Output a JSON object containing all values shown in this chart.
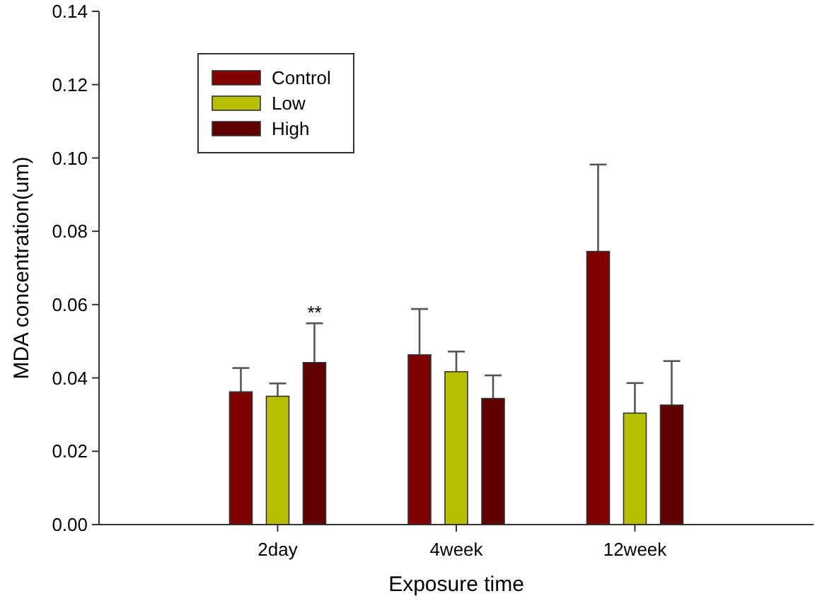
{
  "chart_data": {
    "type": "bar",
    "xlabel": "Exposure time",
    "ylabel": "MDA concentration(um)",
    "categories": [
      "2day",
      "4week",
      "12week"
    ],
    "series": [
      {
        "name": "Control",
        "color": "#800000",
        "values": [
          0.0362,
          0.0463,
          0.0745
        ],
        "errors": [
          0.0065,
          0.0125,
          0.0237
        ]
      },
      {
        "name": "Low",
        "color": "#b8bf00",
        "values": [
          0.035,
          0.0417,
          0.0304
        ],
        "errors": [
          0.0035,
          0.0055,
          0.0082
        ]
      },
      {
        "name": "High",
        "color": "#600000",
        "values": [
          0.0442,
          0.0344,
          0.0326
        ],
        "errors": [
          0.0107,
          0.0063,
          0.012
        ]
      }
    ],
    "ylim": [
      0,
      0.14
    ],
    "yticks": [
      {
        "value": 0,
        "label": "0.00"
      },
      {
        "value": 0.02,
        "label": "0.02"
      },
      {
        "value": 0.04,
        "label": "0.04"
      },
      {
        "value": 0.06,
        "label": "0.06"
      },
      {
        "value": 0.08,
        "label": "0.08"
      },
      {
        "value": 0.1,
        "label": "0.10"
      },
      {
        "value": 0.12,
        "label": "0.12"
      },
      {
        "value": 0.14,
        "label": "0.14"
      }
    ],
    "annotations": [
      "**"
    ],
    "legend": "top left",
    "grid": false
  }
}
